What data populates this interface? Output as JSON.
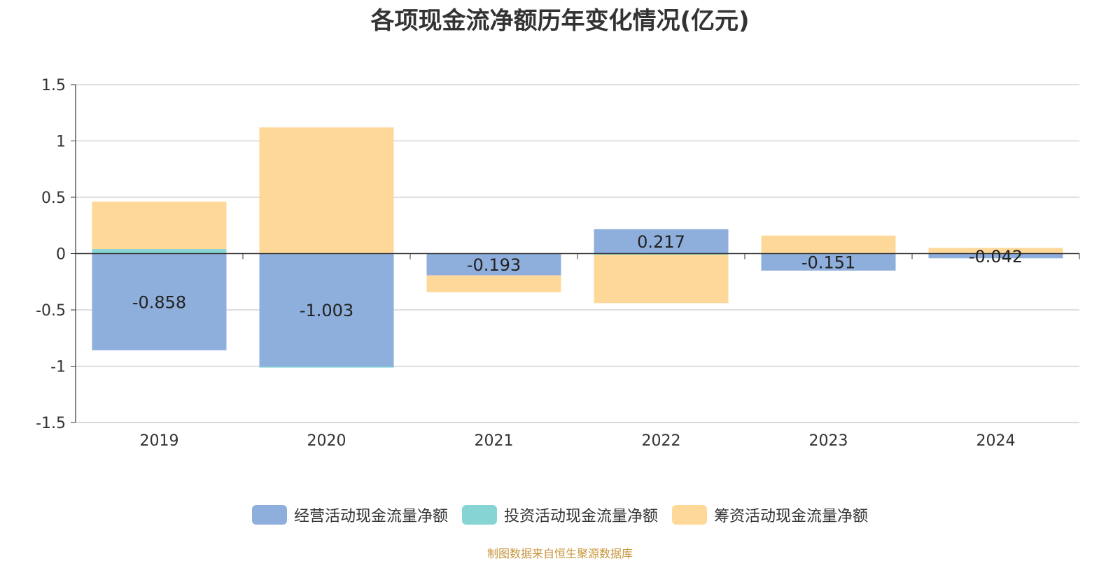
{
  "chart_data": {
    "type": "bar",
    "stacked": true,
    "title": "各项现金流净额历年变化情况(亿元)",
    "categories": [
      "2019",
      "2020",
      "2021",
      "2022",
      "2023",
      "2024"
    ],
    "ylim": [
      -1.5,
      1.5
    ],
    "yticks": [
      1.5,
      1,
      0.5,
      0,
      -0.5,
      -1,
      -1.5
    ],
    "ytick_labels": [
      "1.5",
      "1",
      "0.5",
      "0",
      "-0.5",
      "-1",
      "-1.5"
    ],
    "grid": true,
    "legend_position": "bottom",
    "series": [
      {
        "name": "经营活动现金流量净额",
        "color": "#8eaedb",
        "values": [
          -0.858,
          -1.003,
          -0.193,
          0.217,
          -0.151,
          -0.042
        ],
        "labels": [
          "-0.858",
          "-1.003",
          "-0.193",
          "0.217",
          "-0.151",
          "-0.042"
        ]
      },
      {
        "name": "投资活动现金流量净额",
        "color": "#86d4d4",
        "values": [
          0.04,
          -0.01,
          0.0,
          -0.01,
          0.0,
          0.0
        ]
      },
      {
        "name": "筹资活动现金流量净额",
        "color": "#fed899",
        "values": [
          0.42,
          1.12,
          -0.15,
          -0.43,
          0.16,
          0.05
        ]
      }
    ]
  },
  "source_note": "制图数据来自恒生聚源数据库"
}
